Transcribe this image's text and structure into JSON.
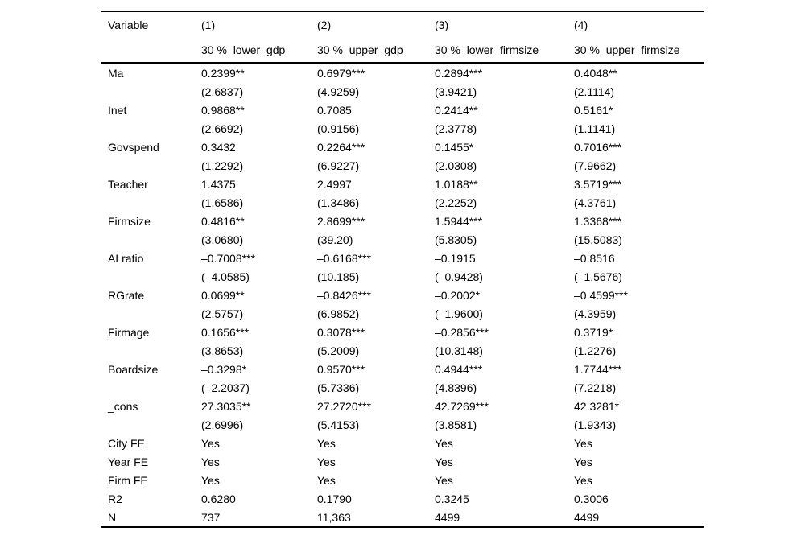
{
  "table": {
    "header": {
      "variable_label": "Variable",
      "model_numbers": [
        "(1)",
        "(2)",
        "(3)",
        "(4)"
      ],
      "model_subtitles": [
        "30 %_lower_gdp",
        "30 %_upper_gdp",
        "30 %_lower_firmsize",
        "30 %_upper_firmsize"
      ]
    },
    "rows": [
      {
        "label": "Ma",
        "coefs": [
          "0.2399**",
          "0.6979***",
          "0.2894***",
          "0.4048**"
        ],
        "tstats": [
          "(2.6837)",
          "(4.9259)",
          "(3.9421)",
          "(2.1114)"
        ]
      },
      {
        "label": "Inet",
        "coefs": [
          "0.9868**",
          "0.7085",
          "0.2414**",
          "0.5161*"
        ],
        "tstats": [
          "(2.6692)",
          "(0.9156)",
          "(2.3778)",
          "(1.1141)"
        ]
      },
      {
        "label": "Govspend",
        "coefs": [
          "0.3432",
          "0.2264***",
          "0.1455*",
          "0.7016***"
        ],
        "tstats": [
          "(1.2292)",
          "(6.9227)",
          "(2.0308)",
          "(7.9662)"
        ]
      },
      {
        "label": "Teacher",
        "coefs": [
          "1.4375",
          "2.4997",
          "1.0188**",
          "3.5719***"
        ],
        "tstats": [
          "(1.6586)",
          "(1.3486)",
          "(2.2252)",
          "(4.3761)"
        ]
      },
      {
        "label": "Firmsize",
        "coefs": [
          "0.4816**",
          "2.8699***",
          "1.5944***",
          "1.3368***"
        ],
        "tstats": [
          "(3.0680)",
          "(39.20)",
          "(5.8305)",
          "(15.5083)"
        ]
      },
      {
        "label": "ALratio",
        "coefs": [
          "–0.7008***",
          "–0.6168***",
          "–0.1915",
          "–0.8516"
        ],
        "tstats": [
          "(–4.0585)",
          "(10.185)",
          "(–0.9428)",
          "(–1.5676)"
        ]
      },
      {
        "label": "RGrate",
        "coefs": [
          "0.0699**",
          "–0.8426***",
          "–0.2002*",
          "–0.4599***"
        ],
        "tstats": [
          "(2.5757)",
          "(6.9852)",
          "(–1.9600)",
          "(4.3959)"
        ]
      },
      {
        "label": "Firmage",
        "coefs": [
          "0.1656***",
          "0.3078***",
          "–0.2856***",
          "0.3719*"
        ],
        "tstats": [
          "(3.8653)",
          "(5.2009)",
          "(10.3148)",
          "(1.2276)"
        ]
      },
      {
        "label": "Boardsize",
        "coefs": [
          "–0.3298*",
          "0.9570***",
          "0.4944***",
          "1.7744***"
        ],
        "tstats": [
          "(–2.2037)",
          "(5.7336)",
          "(4.8396)",
          "(7.2218)"
        ]
      },
      {
        "label": "_cons",
        "coefs": [
          "27.3035**",
          "27.2720***",
          "42.7269***",
          "42.3281*"
        ],
        "tstats": [
          "(2.6996)",
          "(5.4153)",
          "(3.8581)",
          "(1.9343)"
        ]
      }
    ],
    "footer_rows": [
      {
        "label": "City FE",
        "values": [
          "Yes",
          "Yes",
          "Yes",
          "Yes"
        ]
      },
      {
        "label": "Year FE",
        "values": [
          "Yes",
          "Yes",
          "Yes",
          "Yes"
        ]
      },
      {
        "label": "Firm FE",
        "values": [
          "Yes",
          "Yes",
          "Yes",
          "Yes"
        ]
      },
      {
        "label": "R2",
        "values": [
          "0.6280",
          "0.1790",
          "0.3245",
          "0.3006"
        ]
      },
      {
        "label": "N",
        "values": [
          "737",
          "11,363",
          "4499",
          "4499"
        ]
      }
    ]
  }
}
